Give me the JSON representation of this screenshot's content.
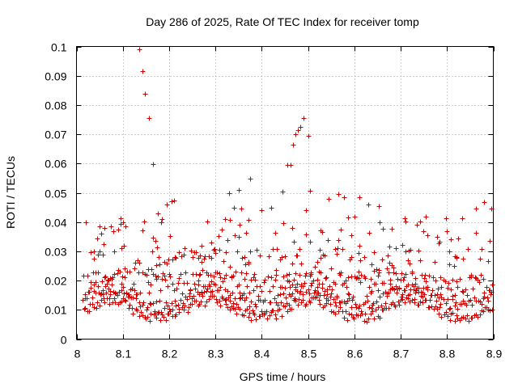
{
  "chart_data": {
    "type": "scatter",
    "title": "Day 286 of 2025, Rate Of TEC Index for receiver tomp",
    "xlabel": "GPS time / hours",
    "ylabel": "ROTI / TECUs",
    "xlim": [
      8.0,
      8.9
    ],
    "ylim": [
      0.0,
      0.1
    ],
    "grid": true,
    "marker": "+",
    "color": "#d40000",
    "x_ticks": [
      8.0,
      8.1,
      8.2,
      8.3,
      8.4,
      8.5,
      8.6,
      8.7,
      8.8,
      8.9
    ],
    "x_tick_labels": [
      "8",
      "8.1",
      "8.2",
      "8.3",
      "8.4",
      "8.5",
      "8.6",
      "8.7",
      "8.8",
      "8.9"
    ],
    "y_ticks": [
      0,
      0.01,
      0.02,
      0.03,
      0.04,
      0.05,
      0.06,
      0.07,
      0.08,
      0.09,
      0.1
    ],
    "y_tick_labels": [
      "0",
      "0.01",
      "0.02",
      "0.03",
      "0.04",
      "0.05",
      "0.06",
      "0.07",
      "0.08",
      "0.09",
      "0.1"
    ],
    "series": [
      {
        "name": "ROTI",
        "points": [
          [
            8.135,
            0.099
          ],
          [
            8.142,
            0.0915
          ],
          [
            8.148,
            0.0838
          ],
          [
            8.156,
            0.0755
          ],
          [
            8.165,
            0.0598
          ],
          [
            8.455,
            0.0595
          ],
          [
            8.462,
            0.0595
          ],
          [
            8.468,
            0.0663
          ],
          [
            8.473,
            0.07
          ],
          [
            8.478,
            0.0715
          ],
          [
            8.483,
            0.0725
          ],
          [
            8.49,
            0.0755
          ],
          [
            8.5,
            0.0695
          ],
          [
            8.505,
            0.0508
          ],
          [
            8.375,
            0.0548
          ],
          [
            8.33,
            0.05
          ],
          [
            8.35,
            0.051
          ],
          [
            8.445,
            0.0505
          ],
          [
            8.205,
            0.047
          ],
          [
            8.21,
            0.0475
          ],
          [
            8.195,
            0.046
          ],
          [
            8.565,
            0.0495
          ],
          [
            8.578,
            0.0485
          ],
          [
            8.61,
            0.0485
          ],
          [
            8.545,
            0.048
          ],
          [
            8.63,
            0.046
          ],
          [
            8.652,
            0.0455
          ],
          [
            8.88,
            0.0468
          ],
          [
            8.862,
            0.0445
          ],
          [
            8.895,
            0.0445
          ],
          [
            8.9,
            0.042
          ],
          [
            8.495,
            0.044
          ],
          [
            8.42,
            0.045
          ],
          [
            8.34,
            0.045
          ],
          [
            8.355,
            0.0445
          ],
          [
            8.4,
            0.044
          ],
          [
            8.175,
            0.043
          ],
          [
            8.185,
            0.041
          ],
          [
            8.1,
            0.04
          ],
          [
            8.095,
            0.0395
          ],
          [
            8.075,
            0.0385
          ],
          [
            8.08,
            0.037
          ],
          [
            8.09,
            0.0375
          ],
          [
            8.05,
            0.0385
          ],
          [
            8.045,
            0.0345
          ],
          [
            8.06,
            0.038
          ]
        ]
      }
    ]
  }
}
